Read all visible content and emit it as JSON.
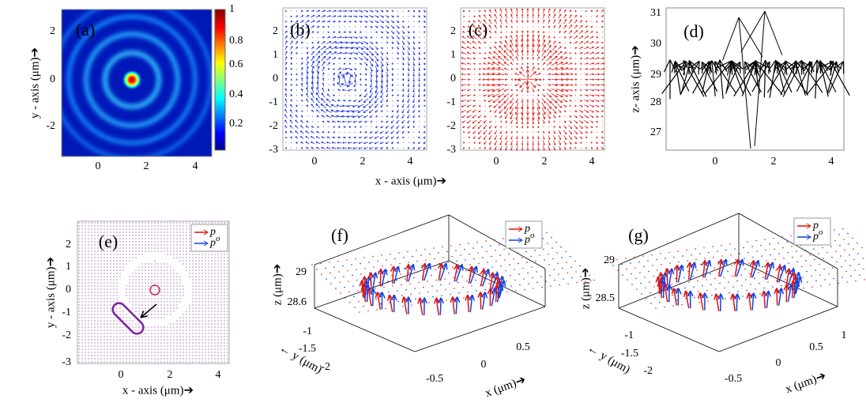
{
  "panels": [
    {
      "label": "(a)",
      "xticks": [
        "0",
        "2",
        "4"
      ],
      "yticks": [
        "2",
        "0",
        "-2"
      ],
      "colorbar_ticks": [
        "1",
        "0.8",
        "0.6",
        "0.4",
        "0.2"
      ],
      "ylabel": "y - axis (μm)➔"
    },
    {
      "label": "(b)",
      "xticks": [
        "0",
        "2",
        "4"
      ],
      "yticks": [
        "2",
        "1",
        "0",
        "-1",
        "-2",
        "-3"
      ]
    },
    {
      "label": "(c)",
      "xticks": [
        "0",
        "2",
        "4"
      ],
      "yticks": [
        "2",
        "1",
        "0",
        "-1",
        "-2",
        "-3"
      ]
    },
    {
      "label": "(d)",
      "xticks": [
        "0",
        "2",
        "4"
      ],
      "yticks": [
        "31",
        "30",
        "29",
        "28",
        "27"
      ],
      "ylabel": "z- axis (μm)➔"
    },
    {
      "label": "(e)",
      "xticks": [
        "0",
        "2",
        "4"
      ],
      "yticks": [
        "2",
        "1",
        "0",
        "-1",
        "-2",
        "-3"
      ],
      "xlabel": "x - axis (μm)➔",
      "ylabel": "y - axis (μm)➔",
      "legend": [
        {
          "symbol": "p"
        },
        {
          "symbol": "p",
          "superscript": "o"
        }
      ]
    },
    {
      "label": "(f)",
      "zticks": [
        "29",
        "28.6"
      ],
      "yticks": [
        "-1",
        "-1.5",
        "-2"
      ],
      "xticks": [
        "0.5",
        "0",
        "-0.5"
      ],
      "zlabel": "z (μm)➔",
      "ylabel": "← y (μm)",
      "xlabel": "x (μm)➔",
      "legend": [
        {
          "symbol": "p"
        },
        {
          "symbol": "p",
          "superscript": "o"
        }
      ]
    },
    {
      "label": "(g)",
      "zticks": [
        "29",
        "28.5"
      ],
      "yticks": [
        "-1",
        "-1.5",
        "-2"
      ],
      "xticks": [
        "1",
        "0.5",
        "0",
        "-0.5"
      ],
      "zlabel": "z (μm)➔",
      "ylabel": "← y (μm)",
      "xlabel": "x (μm)➔",
      "legend": [
        {
          "symbol": "p"
        },
        {
          "symbol": "p",
          "superscript": "o"
        }
      ]
    }
  ],
  "shared_xlabel": "x - axis (μm)➔"
}
